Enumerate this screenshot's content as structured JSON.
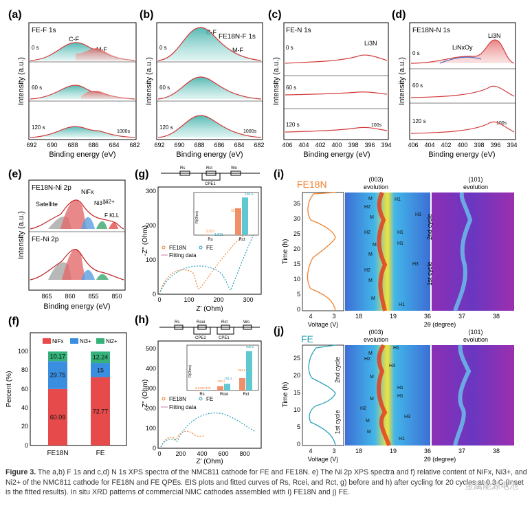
{
  "panel_letters": {
    "a": "(a)",
    "b": "(b)",
    "c": "(c)",
    "d": "(d)",
    "e": "(e)",
    "f": "(f)",
    "g": "(g)",
    "h": "(h)",
    "i": "(i)",
    "j": "(j)"
  },
  "common": {
    "intensity": "Intensity (a.u.)",
    "binding": "Binding energy (eV)",
    "t0": "0 s",
    "t60": "60 s",
    "t120": "120 s",
    "s1000": "1000s",
    "s100": "100s"
  },
  "panel_a": {
    "title": "FE-F 1s",
    "peak1": "C-F",
    "peak2": "M-F",
    "ticks": [
      "692",
      "690",
      "688",
      "686",
      "684",
      "682"
    ]
  },
  "panel_b": {
    "title": "FE18N-F 1s",
    "peak1": "C-F",
    "peak2": "M-F",
    "ticks": [
      "692",
      "690",
      "688",
      "686",
      "684",
      "682"
    ]
  },
  "panel_c": {
    "title": "FE-N 1s",
    "peak1": "Li3N",
    "ticks": [
      "406",
      "404",
      "402",
      "400",
      "398",
      "396",
      "394"
    ]
  },
  "panel_d": {
    "title": "FE18N-N 1s",
    "peak1": "Li3N",
    "peak2": "LiNxOy",
    "ticks": [
      "406",
      "404",
      "402",
      "400",
      "398",
      "396",
      "394"
    ]
  },
  "panel_e": {
    "top": "FE18N-Ni 2p",
    "bottom": "FE-Ni 2p",
    "satellite": "Satellite",
    "nifx": "NiFx",
    "ni3": "Ni3+",
    "ni2": "Ni2+",
    "fkll": "F KLL",
    "ticks": [
      "865",
      "860",
      "855",
      "850"
    ]
  },
  "panel_f": {
    "ylabel": "Percent (%)",
    "yticks": [
      "0",
      "20",
      "40",
      "60",
      "80",
      "100"
    ],
    "legend": [
      "NiFx",
      "Ni3+",
      "Ni2+"
    ],
    "colors": [
      "#e64a4a",
      "#3a8ee0",
      "#34b27a"
    ]
  },
  "panel_g": {
    "ylabel": "-Z'' (Ohm)",
    "xlabel": "Z' (Ohm)",
    "xticks": [
      "0",
      "100",
      "200",
      "300"
    ],
    "yticks": [
      "0",
      "100",
      "200",
      "300"
    ],
    "legend": [
      "FE18N",
      "FE",
      "Fitting data"
    ],
    "circuit": [
      "Rs",
      "Rct",
      "CPE1",
      "Wo"
    ],
    "inset_axis": "R(Ohm)",
    "inset_cats": [
      "Rs",
      "Rct"
    ],
    "inset_values": [
      "2.521",
      "1.631",
      "114.7",
      "160.5"
    ]
  },
  "panel_h": {
    "ylabel": "-Z'' (Ohm)",
    "xlabel": "Z' (Ohm)",
    "xticks": [
      "0",
      "200",
      "400",
      "600",
      "800"
    ],
    "yticks": [
      "0",
      "100",
      "200",
      "300",
      "400",
      "500"
    ],
    "legend": [
      "FE18N",
      "FE",
      "Fitting data"
    ],
    "circuit": [
      "Rs",
      "Rcei",
      "Rct",
      "CPE2",
      "CPE1",
      "Wo"
    ],
    "inset_axis": "R(Ohm)",
    "inset_cats": [
      "Rs",
      "Rcei",
      "Rct"
    ],
    "inset_values": [
      "3.6722.476",
      "100.1",
      "154.3",
      "284.8",
      "906.0"
    ]
  },
  "panel_i": {
    "label": "FE18N",
    "ylabel": "Time (h)",
    "yticks": [
      "0",
      "5",
      "10",
      "15",
      "20",
      "25",
      "30",
      "35"
    ],
    "voltage": "Voltage (V)",
    "vticks": [
      "4",
      "3"
    ],
    "twotheta": "2θ (degree)",
    "xt1": [
      "18",
      "19",
      "36"
    ],
    "xt2": [
      "37",
      "38"
    ],
    "peak1": "(003)",
    "peak2": "(101)",
    "evolution": "evolution",
    "cycle1": "1st cycle",
    "cycle2": "2nd cycle",
    "phases_right": [
      "H1",
      "H3",
      "H1",
      "H1",
      "H3",
      "H1"
    ],
    "phases_left": [
      "M",
      "H2",
      "M",
      "H2",
      "M",
      "M",
      "H2",
      "M",
      "M"
    ]
  },
  "panel_j": {
    "label": "FE",
    "ylabel": "Time (h)",
    "yticks": [
      "0",
      "5",
      "10",
      "15",
      "20",
      "25"
    ],
    "voltage": "Voltage (V)",
    "vticks": [
      "4",
      "3"
    ],
    "twotheta": "2θ (degree)",
    "xt1": [
      "18",
      "19",
      "36"
    ],
    "xt2": [
      "37",
      "38"
    ],
    "peak1": "(003)",
    "peak2": "(101)",
    "evolution": "evolution",
    "cycle1": "1st cycle",
    "cycle2": "2nd cycle",
    "phases_right": [
      "H1",
      "H3",
      "H1",
      "H1",
      "H3",
      "H1"
    ],
    "phases_left": [
      "M",
      "H2",
      "M",
      "M",
      "H2",
      "M",
      "M"
    ]
  },
  "chart_data": [
    {
      "type": "bar",
      "panel": "f",
      "categories": [
        "FE18N",
        "FE"
      ],
      "series": [
        {
          "name": "NiFx",
          "values": [
            60.09,
            72.77
          ]
        },
        {
          "name": "Ni3+",
          "values": [
            29.75,
            15
          ]
        },
        {
          "name": "Ni2+",
          "values": [
            10.17,
            12.24
          ]
        }
      ],
      "ylabel": "Percent (%)",
      "ylim": [
        0,
        120
      ]
    },
    {
      "type": "bar",
      "panel": "g inset",
      "categories": [
        "Rs",
        "Rct"
      ],
      "series": [
        {
          "name": "FE18N",
          "values": [
            2.521,
            114.7
          ]
        },
        {
          "name": "FE",
          "values": [
            1.631,
            160.5
          ]
        }
      ]
    },
    {
      "type": "bar",
      "panel": "h inset",
      "categories": [
        "Rs",
        "Rcei",
        "Rct"
      ],
      "series": [
        {
          "name": "FE18N",
          "values": [
            3.672,
            100.1,
            284.8
          ]
        },
        {
          "name": "FE",
          "values": [
            2.476,
            154.3,
            906.0
          ]
        }
      ]
    }
  ],
  "caption": {
    "label": "Figure 3.",
    "text": " The a,b) F 1s and c,d) N 1s XPS spectra of the NMC811 cathode for FE and FE18N. e) The Ni 2p XPS spectra and f) relative content of NiFx, Ni3+, and Ni2+ of the NMC811 cathode for FE18N and FE QPEs. EIS plots and fitted curves of Rs, Rcei, and Rct, g) before and h) after cycling for 20 cycles at 0.3 C (Inset is the fitted results). In situ XRD patterns of commercial NMC cathodes assembled with i) FE18N and j) FE."
  },
  "watermark": "金属能源电池"
}
